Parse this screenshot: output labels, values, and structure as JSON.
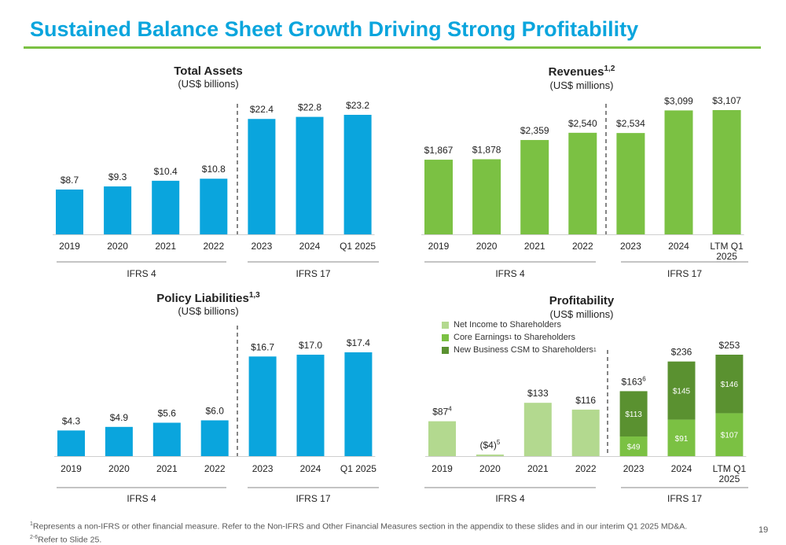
{
  "page": {
    "title": "Sustained Balance Sheet Growth Driving Strong Profitability",
    "page_number": "19",
    "footnote_line1_sup": "1",
    "footnote_line1": "Represents a non-IFRS or other financial measure. Refer to the Non-IFRS and Other Financial Measures section in the appendix to these slides and in our interim Q1 2025 MD&A.",
    "footnote_line2_sup": "2-6",
    "footnote_line2": "Refer to Slide 25."
  },
  "colors": {
    "blue": "#0aa5dd",
    "green": "#7bc143",
    "light_green": "#b3d98f",
    "dark_green": "#5a9130",
    "title_blue": "#0aa5dd",
    "rule_green": "#7bc143"
  },
  "panels": {
    "total_assets": {
      "title": "Total Assets",
      "title_sup": "",
      "subtitle": "(US$ billions)"
    },
    "revenues": {
      "title": "Revenues",
      "title_sup": "1,2",
      "subtitle": "(US$ millions)"
    },
    "policy_liabilities": {
      "title": "Policy Liabilities",
      "title_sup": "1,3",
      "subtitle": "(US$ billions)"
    },
    "profitability": {
      "title": "Profitability",
      "title_sup": "",
      "subtitle": "(US$ millions)"
    }
  },
  "legend": {
    "items": [
      {
        "label": "Net Income to Shareholders",
        "color": "#b3d98f"
      },
      {
        "label": "Core Earnings",
        "sup": "1",
        "label_after": " to Shareholders",
        "color": "#7bc143"
      },
      {
        "label": "New Business CSM to Shareholders",
        "sup": "1",
        "label_after": "",
        "color": "#5a9130"
      }
    ]
  },
  "chart_data": [
    {
      "id": "total_assets",
      "type": "bar",
      "title": "Total Assets",
      "subtitle": "(US$ billions)",
      "categories": [
        "2019",
        "2020",
        "2021",
        "2022",
        "2023",
        "2024",
        "Q1 2025"
      ],
      "values": [
        8.7,
        9.3,
        10.4,
        10.8,
        22.4,
        22.8,
        23.2
      ],
      "value_labels": [
        "$8.7",
        "$9.3",
        "$10.4",
        "$10.8",
        "$22.4",
        "$22.8",
        "$23.2"
      ],
      "ylim": [
        0,
        23.2
      ],
      "color": "#0aa5dd",
      "groups": [
        {
          "label": "IFRS 4",
          "from": 0,
          "to": 3
        },
        {
          "label": "IFRS 17",
          "from": 4,
          "to": 6
        }
      ]
    },
    {
      "id": "revenues",
      "type": "bar",
      "title": "Revenues",
      "subtitle": "(US$ millions)",
      "categories": [
        "2019",
        "2020",
        "2021",
        "2022",
        "2023",
        "2024",
        "LTM Q1 2025"
      ],
      "values": [
        1867,
        1878,
        2359,
        2540,
        2534,
        3099,
        3107
      ],
      "value_labels": [
        "$1,867",
        "$1,878",
        "$2,359",
        "$2,540",
        "$2,534",
        "$3,099",
        "$3,107"
      ],
      "ylim": [
        0,
        3107
      ],
      "color": "#7bc143",
      "groups": [
        {
          "label": "IFRS 4",
          "from": 0,
          "to": 3
        },
        {
          "label": "IFRS 17",
          "from": 4,
          "to": 6
        }
      ]
    },
    {
      "id": "policy_liabilities",
      "type": "bar",
      "title": "Policy Liabilities",
      "subtitle": "(US$ billions)",
      "categories": [
        "2019",
        "2020",
        "2021",
        "2022",
        "2023",
        "2024",
        "Q1 2025"
      ],
      "values": [
        4.3,
        4.9,
        5.6,
        6.0,
        16.7,
        17.0,
        17.4
      ],
      "value_labels": [
        "$4.3",
        "$4.9",
        "$5.6",
        "$6.0",
        "$16.7",
        "$17.0",
        "$17.4"
      ],
      "ylim": [
        0,
        17.4
      ],
      "color": "#0aa5dd",
      "groups": [
        {
          "label": "IFRS 4",
          "from": 0,
          "to": 3
        },
        {
          "label": "IFRS 17",
          "from": 4,
          "to": 6
        }
      ]
    },
    {
      "id": "profitability",
      "type": "bar",
      "title": "Profitability",
      "subtitle": "(US$ millions)",
      "categories": [
        "2019",
        "2020",
        "2021",
        "2022",
        "2023",
        "2024",
        "LTM Q1 2025"
      ],
      "net_income": [
        87,
        -4,
        133,
        116,
        null,
        null,
        null
      ],
      "net_income_labels": [
        "$87",
        "($4)",
        "$133",
        "$116",
        "",
        "",
        ""
      ],
      "net_income_sups": [
        "4",
        "5",
        "",
        "",
        "",
        "",
        ""
      ],
      "series": [
        {
          "name": "Core Earnings to Shareholders",
          "values": [
            null,
            null,
            null,
            null,
            49,
            91,
            107
          ],
          "labels": [
            "",
            "",
            "",
            "",
            "$49",
            "$91",
            "$107"
          ],
          "color": "#7bc143"
        },
        {
          "name": "New Business CSM to Shareholders",
          "values": [
            null,
            null,
            null,
            null,
            113,
            145,
            146
          ],
          "labels": [
            "",
            "",
            "",
            "",
            "$113",
            "$145",
            "$146"
          ],
          "color": "#5a9130"
        }
      ],
      "totals": [
        null,
        null,
        null,
        null,
        163,
        236,
        253
      ],
      "total_labels": [
        "",
        "",
        "",
        "",
        "$163",
        "$236",
        "$253"
      ],
      "total_sups": [
        "",
        "",
        "",
        "",
        "6",
        "",
        ""
      ],
      "ylim": [
        0,
        253
      ],
      "groups": [
        {
          "label": "IFRS 4",
          "from": 0,
          "to": 3
        },
        {
          "label": "IFRS 17",
          "from": 4,
          "to": 6
        }
      ]
    }
  ]
}
